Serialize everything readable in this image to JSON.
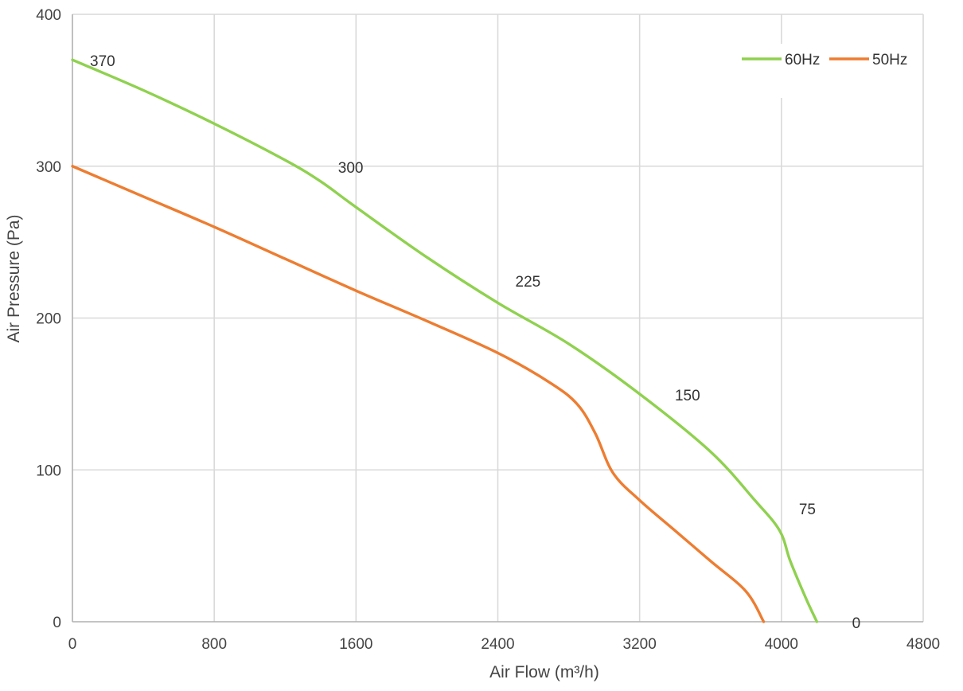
{
  "chart_data": {
    "type": "line",
    "title": "",
    "xlabel": "Air Flow  (m³/h)",
    "ylabel": "Air Pressure  (Pa)",
    "xlim": [
      0,
      4800
    ],
    "ylim": [
      0,
      400
    ],
    "x_ticks": [
      "0",
      "800",
      "1600",
      "2400",
      "3200",
      "4000",
      "4800"
    ],
    "y_ticks": [
      "0",
      "100",
      "200",
      "300",
      "400"
    ],
    "grid": true,
    "legend_position": "top-right",
    "series": [
      {
        "name": "60Hz",
        "color": "#8fd14f",
        "x": [
          0,
          400,
          800,
          1200,
          1400,
          1600,
          2000,
          2400,
          2800,
          3200,
          3600,
          3850,
          3990,
          4050,
          4140,
          4200
        ],
        "y": [
          370,
          350,
          328,
          304,
          290,
          273,
          240,
          210,
          183,
          150,
          112,
          80,
          60,
          40,
          15,
          0
        ]
      },
      {
        "name": "50Hz",
        "color": "#ed7d31",
        "x": [
          0,
          400,
          800,
          1200,
          1600,
          2000,
          2400,
          2700,
          2850,
          2950,
          3050,
          3200,
          3400,
          3600,
          3800,
          3900
        ],
        "y": [
          300,
          280,
          260,
          239,
          218,
          198,
          177,
          157,
          143,
          124,
          98,
          80,
          60,
          40,
          20,
          0
        ]
      }
    ],
    "data_labels": [
      {
        "x": 0,
        "y": 370,
        "text": "370"
      },
      {
        "x": 1400,
        "y": 300,
        "text": "300"
      },
      {
        "x": 2400,
        "y": 225,
        "text": "225"
      },
      {
        "x": 3300,
        "y": 150,
        "text": "150"
      },
      {
        "x": 4000,
        "y": 75,
        "text": "75"
      },
      {
        "x": 4300,
        "y": 0,
        "text": "0"
      }
    ]
  }
}
